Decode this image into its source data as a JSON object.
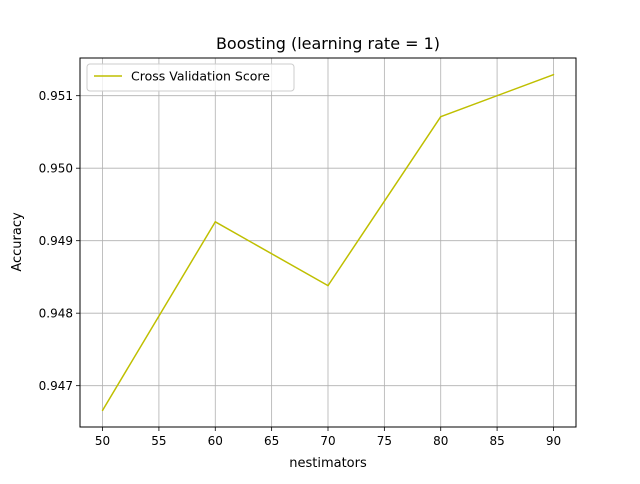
{
  "chart_data": {
    "type": "line",
    "title": "Boosting (learning rate = 1)",
    "xlabel": "nestimators",
    "ylabel": "Accuracy",
    "xlim": [
      48,
      92
    ],
    "ylim": [
      0.94643,
      0.95152
    ],
    "xticks": [
      50,
      55,
      60,
      65,
      70,
      75,
      80,
      85,
      90
    ],
    "yticks": [
      0.947,
      0.948,
      0.949,
      0.95,
      0.951
    ],
    "xtick_labels": [
      "50",
      "55",
      "60",
      "65",
      "70",
      "75",
      "80",
      "85",
      "90"
    ],
    "ytick_labels": [
      "0.947",
      "0.948",
      "0.949",
      "0.950",
      "0.951"
    ],
    "grid": true,
    "legend_position": "top-left",
    "series": [
      {
        "name": "Cross Validation Score",
        "color": "#bfbf00",
        "x": [
          50,
          60,
          70,
          80,
          90
        ],
        "y": [
          0.94666,
          0.94926,
          0.94838,
          0.95071,
          0.95129
        ]
      }
    ]
  }
}
